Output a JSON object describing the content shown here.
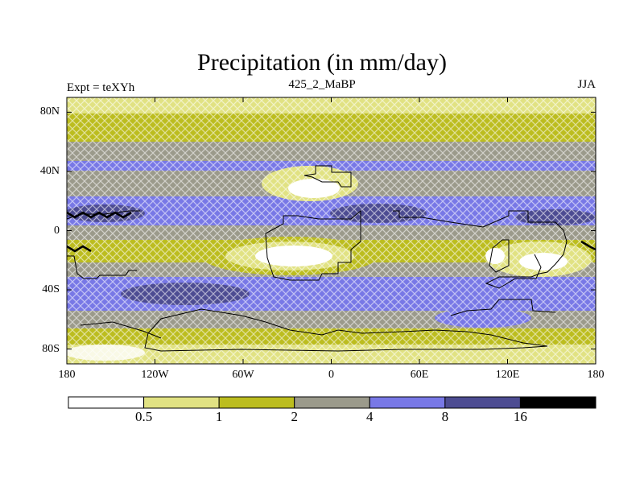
{
  "title": "Precipitation (in mm/day)",
  "left_label": "Expt = teXYh",
  "center_label": "425_2_MaBP",
  "right_label": "JJA",
  "x_ticks": [
    "180",
    "120W",
    "60W",
    "0",
    "60E",
    "120E",
    "180"
  ],
  "y_ticks": [
    "80N",
    "40N",
    "0",
    "40S",
    "80S"
  ],
  "y_tick_values": [
    80,
    40,
    0,
    -40,
    -80
  ],
  "x_tick_values": [
    -180,
    -120,
    -60,
    0,
    60,
    120,
    180
  ],
  "colorbar": {
    "labels": [
      "0.5",
      "1",
      "2",
      "4",
      "8",
      "16"
    ],
    "colors": [
      "#ffffff",
      "#e1e283",
      "#bcbd1f",
      "#9b9a8b",
      "#7878e6",
      "#4d4c92",
      "#000000"
    ]
  },
  "map": {
    "lon_range": [
      -180,
      180
    ],
    "lat_range": [
      -90,
      90
    ],
    "field": "precipitation",
    "units": "mm/day",
    "hatching": "cross-hatch",
    "outlines": "continental"
  }
}
